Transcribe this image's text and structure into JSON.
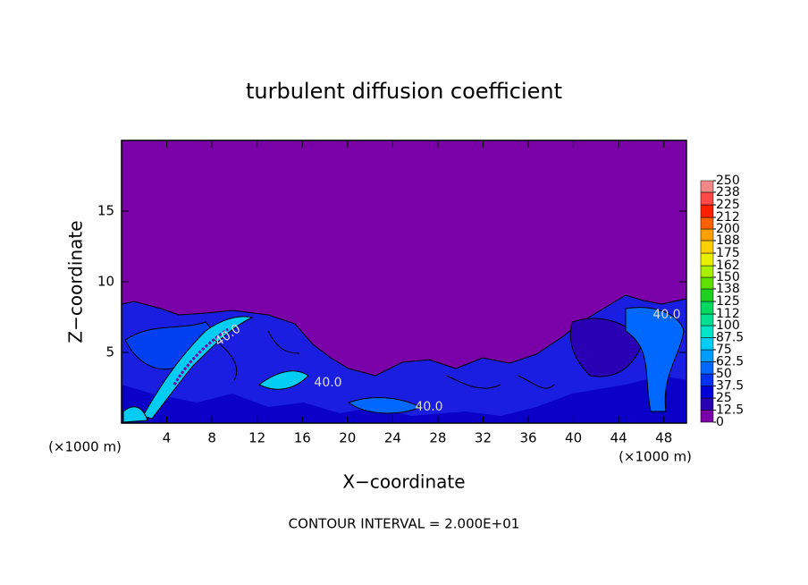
{
  "chart_data": {
    "type": "contour",
    "title": "turbulent diffusion coefficient",
    "xlabel": "X−coordinate",
    "ylabel": "Z−coordinate",
    "x_unit_label": "(×1000 m)",
    "xlim": [
      0,
      50
    ],
    "ylim": [
      0,
      20
    ],
    "xticks": [
      4,
      8,
      12,
      16,
      20,
      24,
      28,
      32,
      36,
      40,
      44,
      48
    ],
    "yticks": [
      5,
      10,
      15
    ],
    "colorbar": {
      "levels": [
        0,
        12.5,
        25,
        37.5,
        50,
        62.5,
        75,
        87.5,
        100,
        112,
        125,
        138,
        150,
        162,
        175,
        188,
        200,
        212,
        225,
        238,
        250
      ],
      "colors": [
        "#7a00a8",
        "#2a00b4",
        "#0000d8",
        "#0030f0",
        "#0068ff",
        "#009cff",
        "#00ccf4",
        "#00e4c8",
        "#00e090",
        "#00d860",
        "#20d020",
        "#60e000",
        "#a8f000",
        "#e8f000",
        "#ffd000",
        "#ffa000",
        "#ff6000",
        "#ff2000",
        "#ff4848",
        "#f08888"
      ]
    },
    "contour_labels": [
      "40.0",
      "40.0",
      "40.0",
      "40.0"
    ],
    "footnote": "CONTOUR INTERVAL = 2.000E+01"
  }
}
